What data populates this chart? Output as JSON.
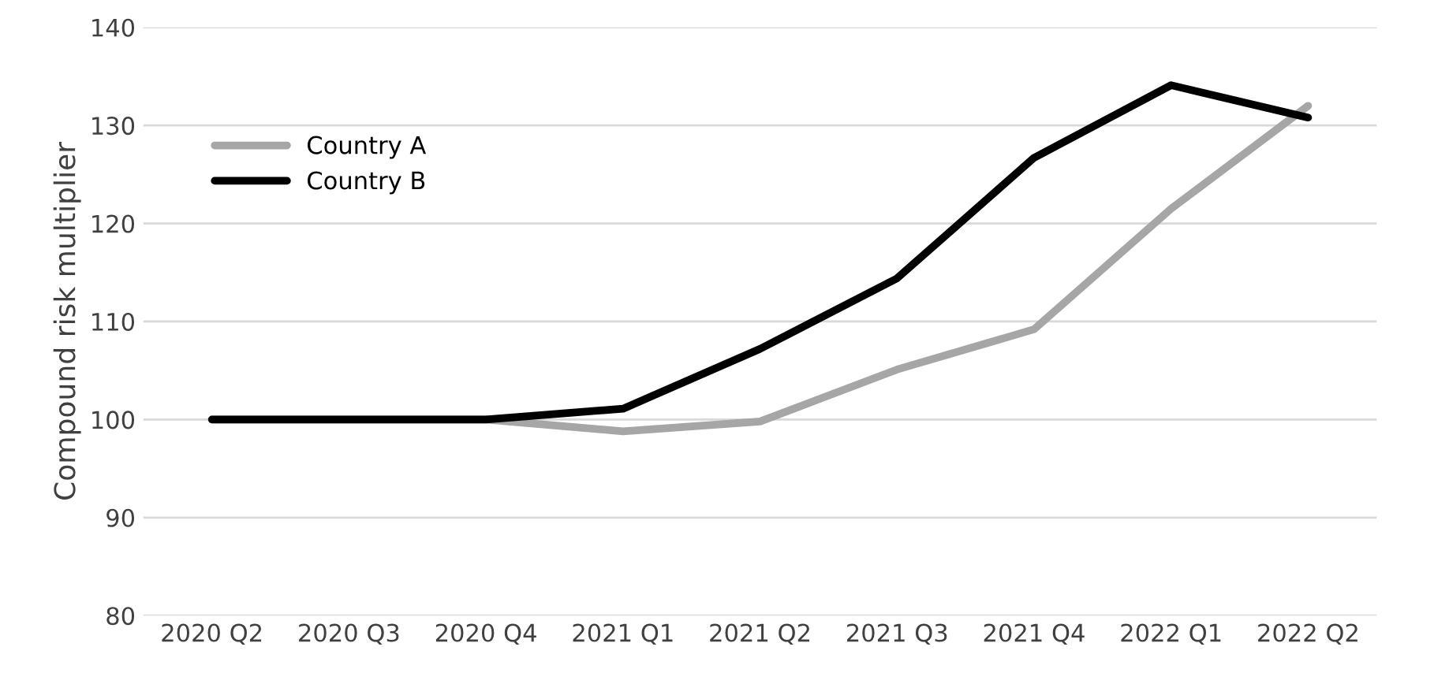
{
  "chart_data": {
    "type": "line",
    "ylabel": "Compound risk multiplier",
    "categories": [
      "2020 Q2",
      "2020 Q3",
      "2020 Q4",
      "2021 Q1",
      "2021 Q2",
      "2021 Q3",
      "2021 Q4",
      "2022 Q1",
      "2022 Q2"
    ],
    "series": [
      {
        "name": "Country A",
        "color": "#a6a6a6",
        "values": [
          100,
          100,
          100,
          98.8,
          99.8,
          105.1,
          109.2,
          121.5,
          132.0
        ]
      },
      {
        "name": "Country B",
        "color": "#000000",
        "values": [
          100,
          100,
          100,
          101.1,
          107.2,
          114.4,
          126.7,
          134.1,
          130.8
        ]
      }
    ],
    "ylim": [
      80,
      140
    ],
    "yticks": [
      80,
      90,
      100,
      110,
      120,
      130,
      140
    ],
    "grid": "y",
    "legend": "top left",
    "marker": "none",
    "line_style": "solid"
  }
}
